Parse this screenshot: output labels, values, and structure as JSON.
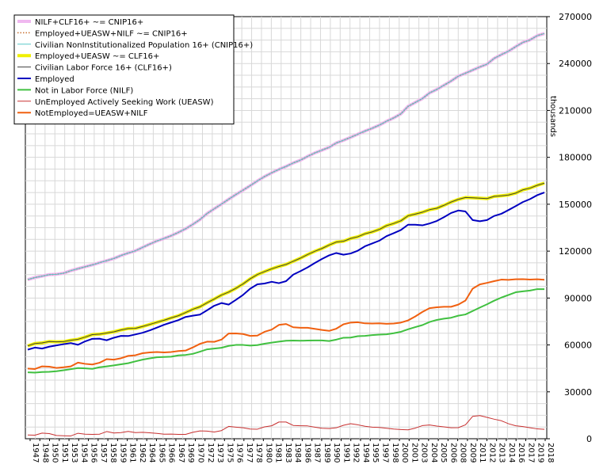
{
  "chart_data": {
    "type": "line",
    "x": [
      1947,
      1948,
      1949,
      1950,
      1951,
      1952,
      1953,
      1954,
      1955,
      1956,
      1957,
      1958,
      1959,
      1960,
      1961,
      1962,
      1963,
      1964,
      1965,
      1966,
      1967,
      1968,
      1969,
      1970,
      1971,
      1972,
      1973,
      1974,
      1975,
      1976,
      1977,
      1978,
      1979,
      1980,
      1981,
      1982,
      1983,
      1984,
      1985,
      1986,
      1987,
      1988,
      1989,
      1990,
      1991,
      1992,
      1993,
      1994,
      1995,
      1996,
      1997,
      1998,
      1999,
      2000,
      2001,
      2002,
      2003,
      2004,
      2005,
      2006,
      2007,
      2008,
      2009,
      2010,
      2011,
      2012,
      2013,
      2014,
      2015,
      2016,
      2017,
      2018,
      2019
    ],
    "x_tick_labels": [
      "1947",
      "1948",
      "1950",
      "1951",
      "1953",
      "1954",
      "1956",
      "1957",
      "1958",
      "1959",
      "1961",
      "1962",
      "1964",
      "1965",
      "1966",
      "1967",
      "1969",
      "1970",
      "1972",
      "1973",
      "1975",
      "1976",
      "1977",
      "1978",
      "1980",
      "1981",
      "1983",
      "1984",
      "1986",
      "1987",
      "1989",
      "1990",
      "1991",
      "1992",
      "1994",
      "1995",
      "1997",
      "1998",
      "2000",
      "2001",
      "2003",
      "2004",
      "2005",
      "2006",
      "2008",
      "2009",
      "2011",
      "2012",
      "2013",
      "2014",
      "2016",
      "2017",
      "2019",
      "2018"
    ],
    "y_tick_labels": [
      "0",
      "30000",
      "60000",
      "90000",
      "120000",
      "150000",
      "180000",
      "210000",
      "240000",
      "270000"
    ],
    "ylabel": "thousands",
    "ylim": [
      0,
      270000
    ],
    "y_axis_side": "right",
    "grid": true,
    "legend_position": "top-left",
    "series": [
      {
        "name": "NILF+CLF16+ ~= CNIP16+",
        "color": "#f0b8f0",
        "style": "solid-thick",
        "values": [
          101800,
          103100,
          104000,
          105000,
          105200,
          105900,
          107500,
          108800,
          110000,
          111200,
          112600,
          113900,
          115300,
          117200,
          118800,
          120200,
          122400,
          124500,
          126500,
          128100,
          129900,
          132000,
          134300,
          137100,
          140200,
          144100,
          147100,
          150100,
          153200,
          156200,
          159000,
          161900,
          164900,
          167700,
          170100,
          172300,
          174200,
          176400,
          178200,
          180600,
          182800,
          184600,
          186400,
          189200,
          190900,
          192800,
          194800,
          196800,
          198600,
          200600,
          203100,
          205200,
          207800,
          212600,
          215100,
          217600,
          221200,
          223400,
          226100,
          228800,
          231900,
          233800,
          235800,
          237800,
          239600,
          243300,
          245700,
          247900,
          250800,
          253500,
          255100,
          257800,
          259200
        ]
      },
      {
        "name": "Employed+UEASW+NILF ~= CNIP16+",
        "color": "#c87030",
        "style": "dotted",
        "values": [
          101800,
          103100,
          104000,
          105000,
          105200,
          105900,
          107500,
          108800,
          110000,
          111200,
          112600,
          113900,
          115300,
          117200,
          118800,
          120200,
          122400,
          124500,
          126500,
          128100,
          129900,
          132000,
          134300,
          137100,
          140200,
          144100,
          147100,
          150100,
          153200,
          156200,
          159000,
          161900,
          164900,
          167700,
          170100,
          172300,
          174200,
          176400,
          178200,
          180600,
          182800,
          184600,
          186400,
          189200,
          190900,
          192800,
          194800,
          196800,
          198600,
          200600,
          203100,
          205200,
          207800,
          212600,
          215100,
          217600,
          221200,
          223400,
          226100,
          228800,
          231900,
          233800,
          235800,
          237800,
          239600,
          243300,
          245700,
          247900,
          250800,
          253500,
          255100,
          257800,
          259200
        ]
      },
      {
        "name": "Civilian NonInstitutionalized Population 16+ (CNIP16+)",
        "color": "#58c8c8",
        "style": "solid",
        "values": [
          101800,
          103100,
          104000,
          105000,
          105200,
          105900,
          107500,
          108800,
          110000,
          111200,
          112600,
          113900,
          115300,
          117200,
          118800,
          120200,
          122400,
          124500,
          126500,
          128100,
          129900,
          132000,
          134300,
          137100,
          140200,
          144100,
          147100,
          150100,
          153200,
          156200,
          159000,
          161900,
          164900,
          167700,
          170100,
          172300,
          174200,
          176400,
          178200,
          180600,
          182800,
          184600,
          186400,
          189200,
          190900,
          192800,
          194800,
          196800,
          198600,
          200600,
          203100,
          205200,
          207800,
          212600,
          215100,
          217600,
          221200,
          223400,
          226100,
          228800,
          231900,
          233800,
          235800,
          237800,
          239600,
          243300,
          245700,
          247900,
          250800,
          253500,
          255100,
          257800,
          259200
        ]
      },
      {
        "name": "Employed+UEASW ~= CLF16+",
        "color": "#f0f000",
        "style": "solid-thick",
        "values": [
          59400,
          60900,
          61300,
          62200,
          62000,
          62100,
          63000,
          63600,
          65000,
          66600,
          66900,
          67600,
          68400,
          69600,
          70500,
          70600,
          71800,
          73100,
          74500,
          75800,
          77300,
          78700,
          80700,
          82800,
          84400,
          87000,
          89400,
          91900,
          93800,
          96200,
          99000,
          102300,
          105000,
          106900,
          108700,
          110200,
          111500,
          113500,
          115500,
          117800,
          119900,
          121700,
          123900,
          125800,
          126300,
          128100,
          129200,
          131100,
          132300,
          133900,
          136300,
          137700,
          139400,
          142600,
          143700,
          144900,
          146500,
          147400,
          149300,
          151400,
          153100,
          154300,
          154100,
          153900,
          153600,
          155000,
          155400,
          155900,
          157100,
          159200,
          160300,
          162100,
          163500
        ]
      },
      {
        "name": "Civilian Labor Force 16+ (CLF16+)",
        "color": "#404040",
        "style": "solid",
        "values": [
          59400,
          60900,
          61300,
          62200,
          62000,
          62100,
          63000,
          63600,
          65000,
          66600,
          66900,
          67600,
          68400,
          69600,
          70500,
          70600,
          71800,
          73100,
          74500,
          75800,
          77300,
          78700,
          80700,
          82800,
          84400,
          87000,
          89400,
          91900,
          93800,
          96200,
          99000,
          102300,
          105000,
          106900,
          108700,
          110200,
          111500,
          113500,
          115500,
          117800,
          119900,
          121700,
          123900,
          125800,
          126300,
          128100,
          129200,
          131100,
          132300,
          133900,
          136300,
          137700,
          139400,
          142600,
          143700,
          144900,
          146500,
          147400,
          149300,
          151400,
          153100,
          154300,
          154100,
          153900,
          153600,
          155000,
          155400,
          155900,
          157100,
          159200,
          160300,
          162100,
          163500
        ]
      },
      {
        "name": "Employed",
        "color": "#0000c0",
        "style": "solid-medium",
        "values": [
          57000,
          58300,
          57700,
          58900,
          59700,
          60500,
          61200,
          60100,
          62300,
          63900,
          64000,
          63000,
          64600,
          65800,
          65700,
          66700,
          67800,
          69300,
          71100,
          72900,
          74400,
          75900,
          77900,
          78700,
          79400,
          82200,
          85100,
          86800,
          85800,
          88800,
          92000,
          96000,
          98800,
          99300,
          100400,
          99500,
          100800,
          105000,
          107200,
          109600,
          112400,
          115000,
          117300,
          118800,
          117700,
          118500,
          120300,
          123100,
          124900,
          126700,
          129600,
          131500,
          133500,
          136900,
          136900,
          136500,
          137700,
          139300,
          141700,
          144400,
          146000,
          145400,
          139900,
          139100,
          139900,
          142500,
          143900,
          146300,
          148800,
          151400,
          153300,
          155800,
          157500
        ]
      },
      {
        "name": "Not in Labor Force (NILF)",
        "color": "#40c040",
        "style": "solid-medium",
        "values": [
          42500,
          42300,
          42700,
          42800,
          43200,
          43800,
          44500,
          45200,
          45000,
          44700,
          45700,
          46300,
          46900,
          47600,
          48300,
          49500,
          50600,
          51400,
          52100,
          52300,
          52500,
          53300,
          53600,
          54300,
          55700,
          57200,
          57700,
          58200,
          59400,
          60000,
          60000,
          59600,
          59900,
          60800,
          61500,
          62100,
          62700,
          62800,
          62700,
          62800,
          62900,
          62900,
          62500,
          63400,
          64600,
          64700,
          65600,
          65800,
          66300,
          66600,
          66800,
          67500,
          68400,
          70000,
          71400,
          72700,
          74700,
          76000,
          76800,
          77400,
          78700,
          79500,
          81700,
          83900,
          86000,
          88300,
          90300,
          92000,
          93700,
          94300,
          94800,
          95700,
          95700
        ]
      },
      {
        "name": "UnEmployed Actively Seeking Work (UEASW)",
        "color": "#c83030",
        "style": "solid",
        "values": [
          2400,
          2300,
          3600,
          3300,
          2100,
          1900,
          1800,
          3500,
          2900,
          2800,
          2900,
          4600,
          3700,
          3900,
          4700,
          3900,
          4100,
          3800,
          3400,
          2900,
          3000,
          2800,
          2800,
          4100,
          5000,
          4900,
          4300,
          5200,
          7900,
          7400,
          7000,
          6200,
          6100,
          7600,
          8300,
          10700,
          10700,
          8500,
          8300,
          8200,
          7400,
          6700,
          6500,
          7000,
          8600,
          9600,
          8900,
          8000,
          7400,
          7200,
          6700,
          6200,
          5900,
          5700,
          6800,
          8400,
          8800,
          8100,
          7600,
          7000,
          7100,
          8900,
          14300,
          14800,
          13700,
          12500,
          11500,
          9600,
          8300,
          7800,
          7000,
          6300,
          6000
        ]
      },
      {
        "name": "NotEmployed=UEASW+NILF",
        "color": "#f06010",
        "style": "solid-medium",
        "values": [
          44900,
          44600,
          46300,
          46100,
          45300,
          45700,
          46300,
          48700,
          47900,
          47500,
          48600,
          50900,
          50600,
          51500,
          53000,
          53400,
          54700,
          55200,
          55500,
          55200,
          55500,
          56100,
          56400,
          58400,
          60700,
          62100,
          62000,
          63400,
          67300,
          67400,
          67000,
          65800,
          66000,
          68400,
          69800,
          72800,
          73400,
          71300,
          71000,
          71000,
          70300,
          69600,
          69000,
          70400,
          73200,
          74300,
          74500,
          73800,
          73700,
          73800,
          73500,
          73700,
          74300,
          75700,
          78200,
          81100,
          83500,
          84100,
          84400,
          84400,
          85800,
          88400,
          96000,
          98700,
          99700,
          100800,
          101800,
          101600,
          102000,
          102100,
          101800,
          102000,
          101700
        ]
      }
    ]
  }
}
